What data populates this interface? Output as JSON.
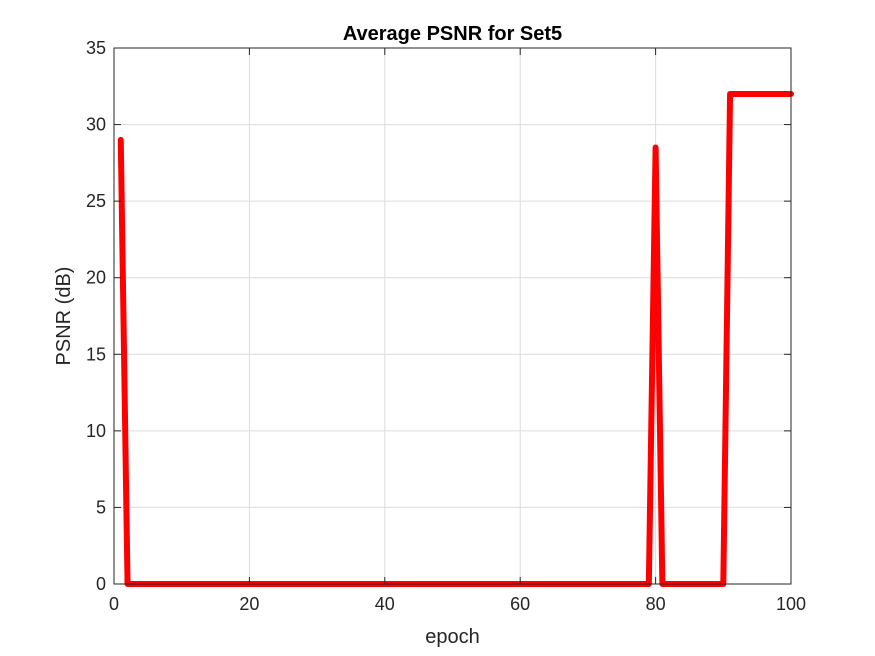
{
  "chart_data": {
    "type": "line",
    "title": "Average PSNR for Set5",
    "xlabel": "epoch",
    "ylabel": "PSNR (dB)",
    "xlim": [
      0,
      100
    ],
    "ylim": [
      0,
      35
    ],
    "xticks": [
      0,
      20,
      40,
      60,
      80,
      100
    ],
    "yticks": [
      0,
      5,
      10,
      15,
      20,
      25,
      30,
      35
    ],
    "grid": true,
    "series": [
      {
        "color": "#ff0000",
        "x": [
          1,
          2,
          3,
          10,
          20,
          30,
          40,
          50,
          60,
          70,
          78,
          79,
          80,
          81,
          82,
          85,
          88,
          90,
          91,
          92,
          95,
          100
        ],
        "y": [
          29,
          0,
          0,
          0,
          0,
          0,
          0,
          0,
          0,
          0,
          0,
          0,
          28.5,
          0,
          0,
          0,
          0,
          0,
          32,
          32,
          32,
          32
        ]
      }
    ]
  }
}
